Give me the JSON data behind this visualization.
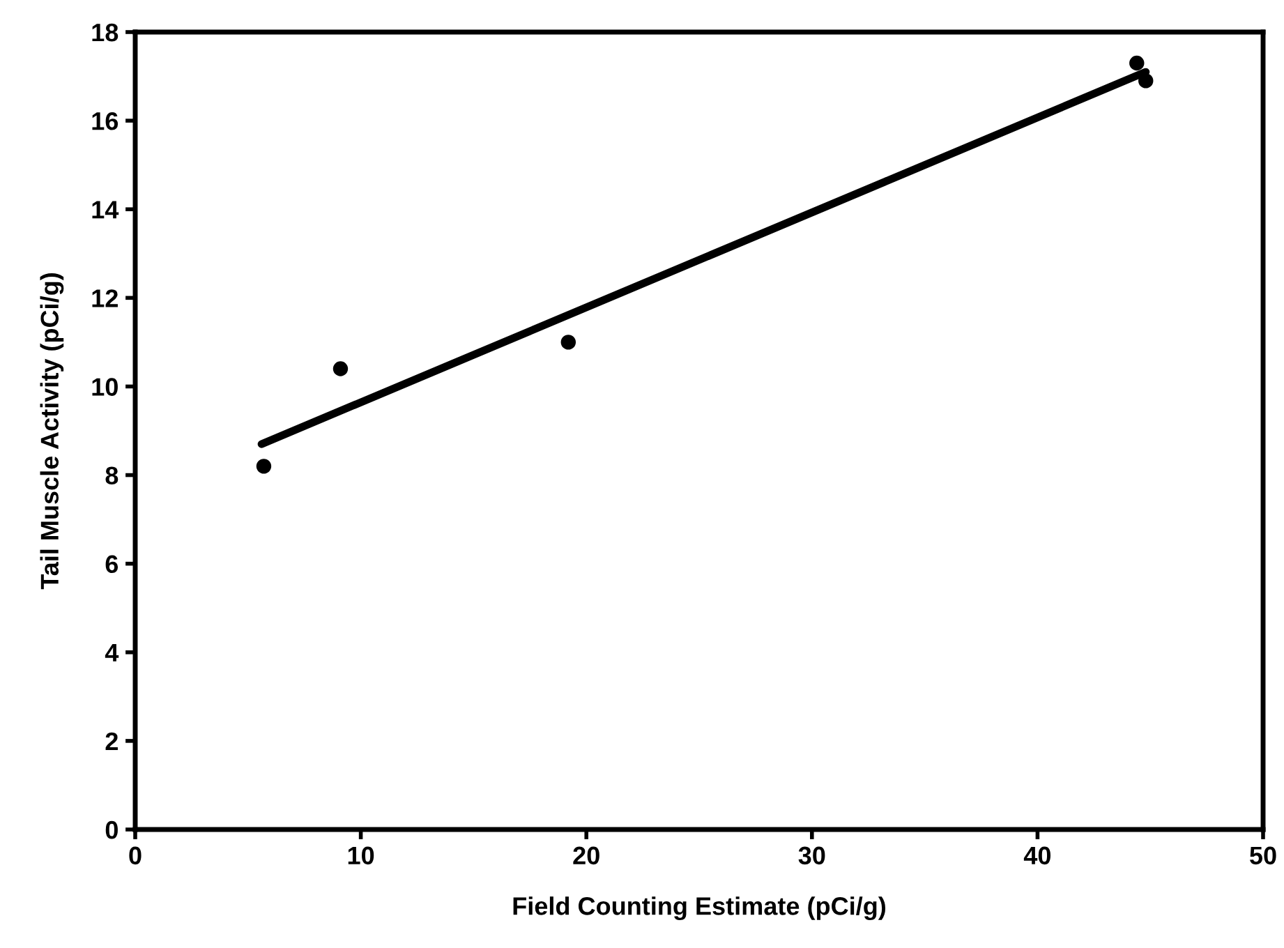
{
  "chart_data": {
    "type": "scatter",
    "xlabel": "Field Counting Estimate (pCi/g)",
    "ylabel": "Tail Muscle Activity (pCi/g)",
    "xlim": [
      0,
      50
    ],
    "xticks": [
      0,
      10,
      20,
      30,
      40,
      50
    ],
    "ylim": [
      0,
      18
    ],
    "yticks": [
      0,
      2,
      4,
      6,
      8,
      10,
      12,
      14,
      16,
      18
    ],
    "grid": false,
    "legend": false,
    "series": [
      {
        "color": "#000000",
        "marker": "circle",
        "x": [
          5.7,
          9.1,
          19.2,
          44.4,
          44.8
        ],
        "values": [
          8.2,
          10.4,
          11.0,
          17.3,
          16.9
        ]
      },
      {
        "type": "line",
        "color": "#000000",
        "marker": "none",
        "line_style": "solid",
        "x": [
          5.6,
          44.8
        ],
        "values": [
          8.7,
          17.1
        ]
      }
    ]
  }
}
